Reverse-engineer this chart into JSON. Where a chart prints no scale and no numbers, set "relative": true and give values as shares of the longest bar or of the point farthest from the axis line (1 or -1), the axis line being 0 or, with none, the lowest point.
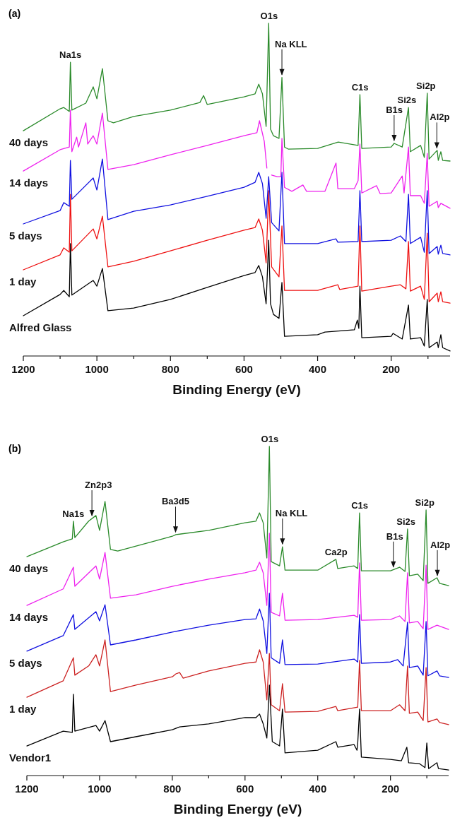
{
  "chart_data": [
    {
      "type": "line",
      "title": "(a)",
      "xlabel": "Binding Energy (eV)",
      "relative": true,
      "legend": false,
      "grid": false,
      "xlim": [
        1200,
        40
      ],
      "xticks": [
        1200,
        {
          "value": 1100,
          "label": null
        },
        1000,
        {
          "value": 900,
          "label": null
        },
        800,
        {
          "value": 700,
          "label": null
        },
        600,
        {
          "value": 500,
          "label": null
        },
        400,
        {
          "value": 300,
          "label": null
        },
        200,
        {
          "value": 100,
          "label": null
        }
      ],
      "series": [
        {
          "name": "40 days",
          "color": "#2a8a2a",
          "x": [
            1200,
            1100,
            1090,
            1075,
            1072,
            1068,
            1030,
            1010,
            1000,
            985,
            970,
            955,
            900,
            800,
            720,
            710,
            700,
            600,
            570,
            560,
            550,
            540,
            533,
            528,
            520,
            505,
            497,
            490,
            480,
            400,
            344,
            290,
            285,
            280,
            200,
            192,
            170,
            153,
            148,
            120,
            110,
            102,
            97,
            75,
            72,
            65,
            60,
            40
          ],
          "values": [
            0.677,
            0.743,
            0.747,
            0.735,
            0.883,
            0.739,
            0.76,
            0.809,
            0.773,
            0.864,
            0.707,
            0.701,
            0.72,
            0.739,
            0.762,
            0.783,
            0.756,
            0.779,
            0.788,
            0.817,
            0.788,
            0.69,
            1,
            0.682,
            0.662,
            0.654,
            0.837,
            0.628,
            0.622,
            0.624,
            0.643,
            0.633,
            0.786,
            0.624,
            0.628,
            0.639,
            0.628,
            0.747,
            0.614,
            0.633,
            0.597,
            0.79,
            0.592,
            0.618,
            0.588,
            0.614,
            0.588,
            0.586
          ]
        },
        {
          "name": "14 days",
          "color": "#ee22ee",
          "x": [
            1200,
            1100,
            1075,
            1072,
            1068,
            1055,
            1050,
            1030,
            1025,
            1010,
            1000,
            985,
            970,
            900,
            800,
            700,
            600,
            565,
            558,
            545,
            538,
            533,
            525,
            510,
            500,
            497,
            490,
            470,
            440,
            430,
            380,
            350,
            345,
            300,
            290,
            285,
            280,
            240,
            230,
            200,
            170,
            165,
            153,
            148,
            120,
            110,
            102,
            97,
            75,
            72,
            65,
            40
          ],
          "values": [
            0.556,
            0.62,
            0.628,
            0.739,
            0.614,
            0.658,
            0.628,
            0.701,
            0.637,
            0.662,
            0.637,
            0.73,
            0.561,
            0.575,
            0.605,
            0.633,
            0.662,
            0.671,
            0.707,
            0.645,
            0.565,
            null,
            0.544,
            0.539,
            0.539,
            0.654,
            0.507,
            0.495,
            0.514,
            0.495,
            0.495,
            0.58,
            0.503,
            0.503,
            0.527,
            0.637,
            0.49,
            0.512,
            0.488,
            0.49,
            0.541,
            0.49,
            0.628,
            0.482,
            0.482,
            0.459,
            0.609,
            0.45,
            0.465,
            0.446,
            0.459,
            0.444
          ]
        },
        {
          "name": "5 days",
          "color": "#1010e0",
          "x": [
            1200,
            1100,
            1090,
            1075,
            1072,
            1068,
            1010,
            1000,
            985,
            970,
            900,
            800,
            700,
            600,
            570,
            560,
            550,
            540,
            533,
            525,
            505,
            497,
            490,
            400,
            350,
            345,
            290,
            285,
            280,
            200,
            175,
            160,
            153,
            148,
            120,
            110,
            102,
            97,
            75,
            72,
            65,
            60,
            40
          ],
          "values": [
            0.397,
            0.437,
            0.461,
            0.45,
            0.588,
            0.471,
            0.535,
            0.499,
            0.592,
            0.41,
            0.435,
            0.454,
            0.48,
            0.507,
            0.522,
            0.552,
            0.518,
            0.414,
            0.539,
            0.401,
            0.376,
            0.552,
            0.338,
            0.338,
            0.352,
            0.342,
            0.344,
            0.497,
            0.344,
            0.348,
            0.361,
            0.344,
            0.486,
            0.338,
            0.357,
            0.312,
            0.497,
            0.308,
            0.329,
            0.306,
            0.333,
            0.308,
            0.304
          ]
        },
        {
          "name": "1 day",
          "color": "#ee1111",
          "x": [
            1200,
            1100,
            1090,
            1075,
            1072,
            1068,
            1010,
            1000,
            985,
            970,
            900,
            800,
            700,
            600,
            570,
            560,
            550,
            540,
            533,
            525,
            505,
            497,
            490,
            400,
            345,
            340,
            290,
            285,
            280,
            200,
            175,
            160,
            153,
            148,
            120,
            110,
            102,
            97,
            75,
            72,
            65,
            60,
            40
          ],
          "values": [
            0.259,
            0.304,
            0.325,
            0.312,
            0.486,
            0.316,
            0.382,
            0.352,
            0.42,
            0.268,
            0.285,
            0.316,
            0.348,
            0.378,
            0.386,
            0.412,
            0.378,
            0.28,
            0.497,
            0.268,
            0.238,
            0.391,
            0.197,
            0.197,
            0.214,
            0.2,
            0.21,
            0.391,
            0.195,
            0.21,
            0.214,
            0.202,
            0.344,
            0.195,
            0.21,
            0.17,
            0.369,
            0.163,
            0.189,
            0.163,
            0.193,
            0.163,
            0.159
          ]
        },
        {
          "name": "Alfred Glass",
          "color": "#000000",
          "x": [
            1200,
            1100,
            1090,
            1075,
            1072,
            1068,
            1010,
            1000,
            985,
            970,
            900,
            800,
            700,
            600,
            570,
            560,
            550,
            540,
            533,
            528,
            520,
            505,
            497,
            490,
            400,
            380,
            300,
            292,
            288,
            285,
            280,
            200,
            195,
            170,
            153,
            148,
            120,
            110,
            102,
            97,
            75,
            72,
            65,
            60,
            40
          ],
          "values": [
            0.121,
            0.185,
            0.197,
            0.178,
            0.338,
            0.183,
            0.227,
            0.21,
            0.263,
            0.136,
            0.144,
            0.17,
            0.206,
            0.242,
            0.251,
            0.272,
            0.238,
            0.157,
            0.348,
            0.157,
            0.125,
            0.113,
            0.221,
            0.059,
            0.064,
            0.072,
            0.079,
            0.108,
            0.083,
            0.21,
            0.055,
            0.059,
            0.068,
            0.051,
            0.153,
            0.051,
            0.055,
            0.03,
            0.17,
            0.025,
            0.042,
            0.025,
            0.064,
            0.025,
            0.015
          ]
        }
      ],
      "annotations": [
        {
          "text": "Na1s",
          "x": 1072,
          "y": 0.883
        },
        {
          "text": "O1s",
          "x": 533,
          "y": 1
        },
        {
          "text": "Na KLL",
          "x": 497,
          "y": 0.837
        },
        {
          "text": "C1s",
          "x": 285,
          "y": 0.786
        },
        {
          "text": "Si2s",
          "x": 153,
          "y": 0.747
        },
        {
          "text": "Si2p",
          "x": 102,
          "y": 0.79
        },
        {
          "text": "B1s",
          "x": 192,
          "y": 0.639
        },
        {
          "text": "Al2p",
          "x": 76,
          "y": 0.617
        }
      ]
    },
    {
      "type": "line",
      "title": "(b)",
      "xlabel": "Binding Energy (eV)",
      "relative": true,
      "legend": false,
      "grid": false,
      "xlim": [
        1200,
        40
      ],
      "xticks": [
        1200,
        {
          "value": 1100,
          "label": null
        },
        1000,
        {
          "value": 900,
          "label": null
        },
        800,
        {
          "value": 700,
          "label": null
        },
        600,
        {
          "value": 500,
          "label": null
        },
        400,
        {
          "value": 300,
          "label": null
        },
        200,
        {
          "value": 100,
          "label": null
        }
      ],
      "series": [
        {
          "name": "40 days",
          "color": "#2a8a2a",
          "x": [
            1200,
            1100,
            1075,
            1072,
            1068,
            1030,
            1010,
            1000,
            985,
            970,
            950,
            800,
            790,
            700,
            600,
            570,
            560,
            550,
            540,
            533,
            528,
            505,
            497,
            490,
            400,
            350,
            345,
            300,
            290,
            285,
            280,
            200,
            175,
            160,
            153,
            148,
            125,
            110,
            102,
            97,
            72,
            65,
            40
          ],
          "values": [
            0.665,
            0.71,
            0.719,
            0.773,
            0.723,
            0.773,
            0.79,
            0.745,
            0.833,
            0.687,
            0.682,
            0.727,
            0.732,
            0.745,
            0.768,
            0.773,
            0.798,
            0.768,
            0.661,
            1,
            0.65,
            0.637,
            0.695,
            0.624,
            0.624,
            0.657,
            0.629,
            0.637,
            0.629,
            0.798,
            0.622,
            0.622,
            0.633,
            0.62,
            0.749,
            0.607,
            0.612,
            0.592,
            0.807,
            0.584,
            0.601,
            0.584,
            0.577
          ]
        },
        {
          "name": "14 days",
          "color": "#ee22ee",
          "x": [
            1200,
            1100,
            1072,
            1068,
            1010,
            1000,
            985,
            970,
            900,
            800,
            700,
            600,
            570,
            560,
            550,
            540,
            533,
            528,
            505,
            497,
            490,
            400,
            300,
            290,
            285,
            280,
            200,
            175,
            160,
            153,
            148,
            125,
            110,
            102,
            97,
            72,
            40
          ],
          "values": [
            0.517,
            0.567,
            0.633,
            0.575,
            0.637,
            0.597,
            0.678,
            0.539,
            0.549,
            0.575,
            0.597,
            0.616,
            0.624,
            0.648,
            0.616,
            0.517,
            0.736,
            0.496,
            0.485,
            0.554,
            0.472,
            0.474,
            0.487,
            0.481,
            0.646,
            0.472,
            0.474,
            0.485,
            0.468,
            0.616,
            0.464,
            0.468,
            0.446,
            0.639,
            0.444,
            0.457,
            0.444
          ]
        },
        {
          "name": "5 days",
          "color": "#1010e0",
          "x": [
            1200,
            1100,
            1072,
            1068,
            1010,
            1000,
            985,
            970,
            900,
            800,
            700,
            600,
            570,
            560,
            550,
            540,
            533,
            528,
            505,
            497,
            490,
            400,
            300,
            290,
            285,
            280,
            200,
            180,
            165,
            153,
            148,
            125,
            110,
            102,
            97,
            72,
            65,
            40
          ],
          "values": [
            0.378,
            0.425,
            0.489,
            0.444,
            0.498,
            0.47,
            0.519,
            0.397,
            0.412,
            0.436,
            0.457,
            0.474,
            0.476,
            0.506,
            0.47,
            0.371,
            0.554,
            0.358,
            0.341,
            0.412,
            0.337,
            0.339,
            0.354,
            0.345,
            0.489,
            0.341,
            0.345,
            0.352,
            0.333,
            0.466,
            0.328,
            0.333,
            0.305,
            0.468,
            0.303,
            0.318,
            0.303,
            0.298
          ]
        },
        {
          "name": "1 day",
          "color": "#cc2222",
          "x": [
            1200,
            1100,
            1072,
            1068,
            1030,
            1010,
            1000,
            985,
            970,
            900,
            800,
            790,
            780,
            770,
            700,
            600,
            570,
            560,
            550,
            540,
            533,
            528,
            505,
            497,
            490,
            400,
            350,
            345,
            290,
            285,
            280,
            200,
            175,
            160,
            153,
            148,
            125,
            110,
            102,
            97,
            72,
            65,
            40
          ],
          "values": [
            0.238,
            0.288,
            0.358,
            0.305,
            0.333,
            0.367,
            0.333,
            0.412,
            0.255,
            0.275,
            0.3,
            0.309,
            0.313,
            0.296,
            0.318,
            0.341,
            0.345,
            0.382,
            0.345,
            0.23,
            0.371,
            0.215,
            0.197,
            0.279,
            0.193,
            0.195,
            0.21,
            0.197,
            0.208,
            0.35,
            0.197,
            0.197,
            0.215,
            0.197,
            0.333,
            0.189,
            0.193,
            0.167,
            0.328,
            0.163,
            0.172,
            0.161,
            0.155
          ]
        },
        {
          "name": "Vendor1",
          "color": "#000000",
          "x": [
            1200,
            1100,
            1075,
            1072,
            1068,
            1010,
            1000,
            985,
            970,
            900,
            800,
            780,
            700,
            600,
            570,
            560,
            550,
            540,
            533,
            525,
            505,
            497,
            490,
            400,
            350,
            345,
            300,
            292,
            290,
            285,
            280,
            200,
            170,
            155,
            150,
            120,
            105,
            100,
            95,
            72,
            68,
            40
          ],
          "values": [
            0.09,
            0.135,
            0.131,
            0.247,
            0.135,
            0.152,
            0.135,
            0.167,
            0.103,
            0.118,
            0.139,
            0.148,
            0.157,
            0.176,
            0.176,
            0.187,
            0.157,
            0.114,
            0.275,
            0.103,
            0.09,
            0.202,
            0.069,
            0.077,
            0.103,
            0.086,
            0.094,
            0.077,
            0.099,
            0.202,
            0.056,
            0.049,
            0.045,
            0.086,
            0.039,
            0.036,
            0.024,
            0.099,
            0.021,
            0.039,
            0.021,
            0.017
          ]
        }
      ],
      "annotations": [
        {
          "text": "Na1s",
          "x": 1072,
          "y": 0.773
        },
        {
          "text": "Zn2p3",
          "x": 1021,
          "y": 0.781
        },
        {
          "text": "Ba3d5",
          "x": 791,
          "y": 0.731
        },
        {
          "text": "O1s",
          "x": 533,
          "y": 1
        },
        {
          "text": "Na KLL",
          "x": 497,
          "y": 0.695
        },
        {
          "text": "Ca2p",
          "x": 350,
          "y": 0.657
        },
        {
          "text": "C1s",
          "x": 285,
          "y": 0.798
        },
        {
          "text": "B1s",
          "x": 192,
          "y": 0.625
        },
        {
          "text": "Si2s",
          "x": 153,
          "y": 0.749
        },
        {
          "text": "Si2p",
          "x": 102,
          "y": 0.807
        },
        {
          "text": "Al2p",
          "x": 71,
          "y": 0.599
        }
      ]
    }
  ]
}
